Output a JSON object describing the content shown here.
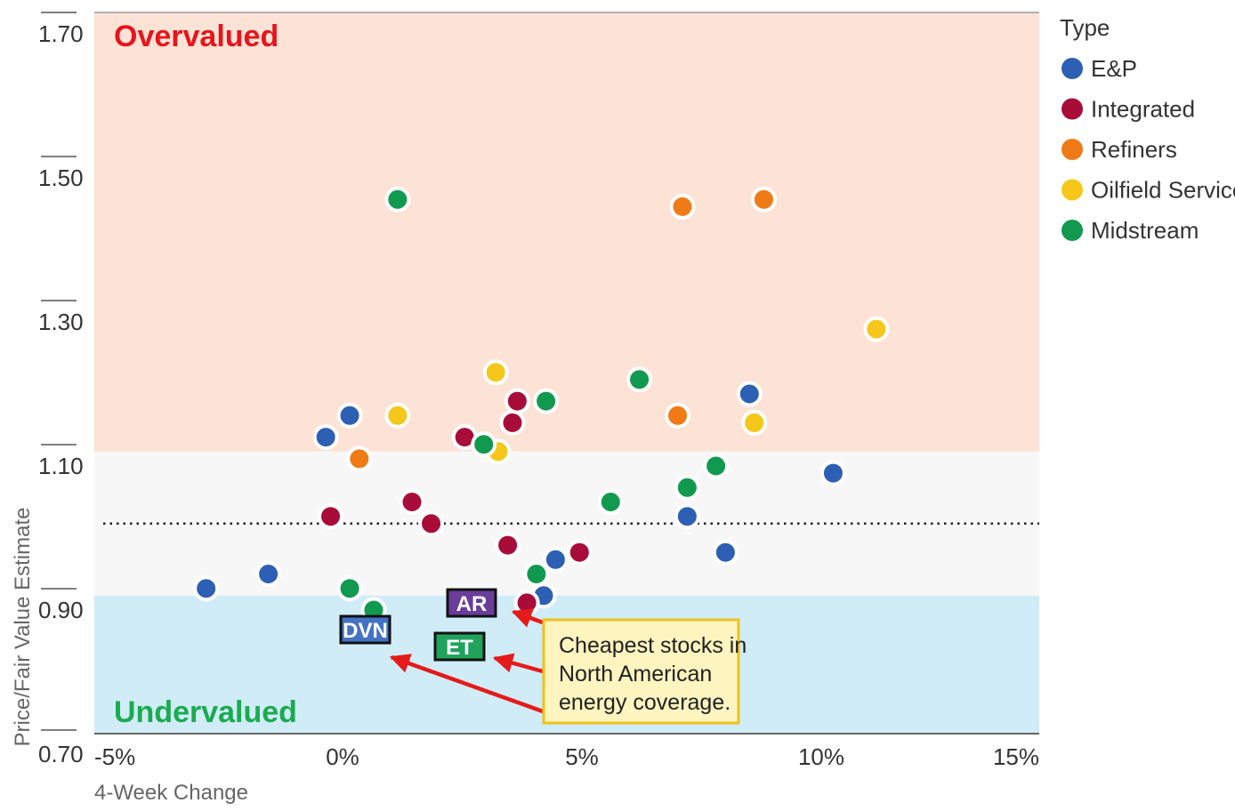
{
  "chart_data": {
    "type": "scatter",
    "xlabel": "4-Week Change",
    "ylabel": "Price/Fair Value Estimate",
    "xlim": [
      -5,
      15
    ],
    "ylim": [
      0.67,
      1.7
    ],
    "x_ticks": [
      "-5%",
      "0%",
      "5%",
      "10%",
      "15%"
    ],
    "x_tick_values": [
      -5,
      0,
      5,
      10,
      15
    ],
    "y_ticks": [
      "1.70",
      "1.50",
      "1.30",
      "1.10",
      "0.90",
      "0.70"
    ],
    "y_tick_values": [
      1.7,
      1.5,
      1.3,
      1.1,
      0.9,
      0.7
    ],
    "reference_line": 1.02,
    "zones": {
      "overvalued": {
        "label": "Overvalued",
        "from": 1.12,
        "to": 1.7,
        "fill": "#fce3d6",
        "label_color": "#e8141c"
      },
      "neutral": {
        "from": 0.92,
        "to": 1.12,
        "fill": "#f7f7f7"
      },
      "undervalued": {
        "label": "Undervalued",
        "from": 0.67,
        "to": 0.92,
        "fill": "#d0ecf7",
        "label_color": "#1aab4f"
      }
    },
    "legend": {
      "title": "Type",
      "placement": "right"
    },
    "series": [
      {
        "name": "E&P",
        "color": "#2d5fb4",
        "points": [
          [
            -2.85,
            0.93
          ],
          [
            -1.55,
            0.95
          ],
          [
            -0.35,
            1.14
          ],
          [
            0.15,
            1.17
          ],
          [
            4.2,
            0.92
          ],
          [
            4.45,
            0.97
          ],
          [
            7.2,
            1.03
          ],
          [
            8.0,
            0.98
          ],
          [
            8.5,
            1.2
          ],
          [
            10.25,
            1.09
          ]
        ]
      },
      {
        "name": "Integrated",
        "color": "#a80d3a",
        "points": [
          [
            -0.25,
            1.03
          ],
          [
            1.45,
            1.05
          ],
          [
            1.85,
            1.02
          ],
          [
            2.55,
            1.14
          ],
          [
            3.45,
            0.99
          ],
          [
            3.55,
            1.16
          ],
          [
            3.65,
            1.19
          ],
          [
            3.85,
            0.91
          ],
          [
            4.95,
            0.98
          ]
        ]
      },
      {
        "name": "Refiners",
        "color": "#f07b16",
        "points": [
          [
            0.35,
            1.11
          ],
          [
            7.0,
            1.17
          ],
          [
            7.1,
            1.46
          ],
          [
            8.8,
            1.47
          ]
        ]
      },
      {
        "name": "Oilfield Services",
        "color": "#f5c71a",
        "points": [
          [
            1.15,
            1.17
          ],
          [
            3.25,
            1.12
          ],
          [
            3.2,
            1.23
          ],
          [
            8.6,
            1.16
          ],
          [
            11.15,
            1.29
          ]
        ]
      },
      {
        "name": "Midstream",
        "color": "#119a4f",
        "points": [
          [
            1.15,
            1.47
          ],
          [
            0.15,
            0.93
          ],
          [
            0.65,
            0.9
          ],
          [
            2.95,
            1.13
          ],
          [
            4.05,
            0.95
          ],
          [
            4.25,
            1.19
          ],
          [
            5.6,
            1.05
          ],
          [
            6.2,
            1.22
          ],
          [
            7.2,
            1.07
          ],
          [
            7.8,
            1.1
          ]
        ]
      }
    ],
    "tags": [
      {
        "label": "AR",
        "color": "#6a3d9a"
      },
      {
        "label": "DVN",
        "color": "#4472c4"
      },
      {
        "label": "ET",
        "color": "#21a35c"
      }
    ],
    "annotation": {
      "lines": [
        "Cheapest stocks in",
        "North American",
        "energy coverage."
      ],
      "fill": "#fdf4bf",
      "border": "#f0c21b",
      "arrow_color": "#e51a1a"
    }
  }
}
